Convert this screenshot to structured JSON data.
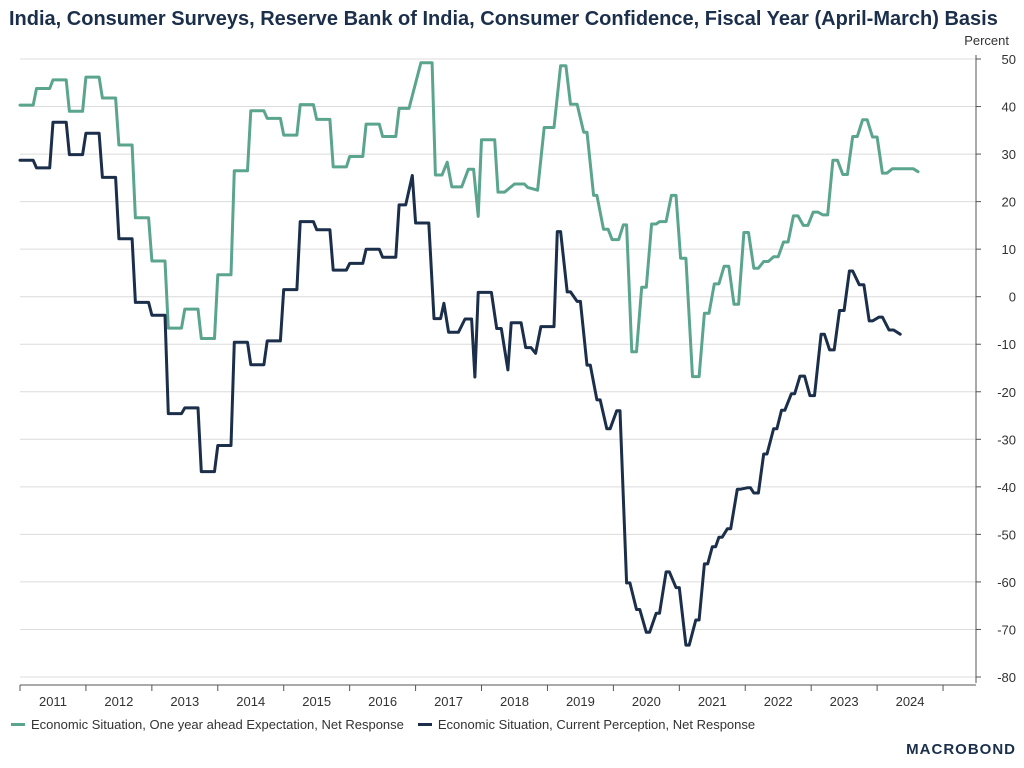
{
  "chart_data": {
    "type": "line",
    "title": "India, Consumer Surveys, Reserve Bank of India, Consumer Confidence, Fiscal Year (April-March) Basis",
    "y_unit": "Percent",
    "ylim": [
      -80,
      50
    ],
    "y_ticks": [
      50,
      40,
      30,
      20,
      10,
      0,
      -10,
      -20,
      -30,
      -40,
      -50,
      -60,
      -70,
      -80
    ],
    "x_range": [
      2010.5,
      2025.0
    ],
    "x_tick_labels": [
      "2011",
      "2012",
      "2013",
      "2014",
      "2015",
      "2016",
      "2017",
      "2018",
      "2019",
      "2020",
      "2021",
      "2022",
      "2023",
      "2024"
    ],
    "grid": "horizontal",
    "legend_position": "bottom-left",
    "series": [
      {
        "name": "Economic Situation, One year ahead Expectation, Net Response",
        "color": "#5ba58e",
        "points": [
          [
            2010.5,
            40.3
          ],
          [
            2010.7,
            40.3
          ],
          [
            2010.75,
            43.8
          ],
          [
            2010.95,
            43.8
          ],
          [
            2011.0,
            45.6
          ],
          [
            2011.2,
            45.6
          ],
          [
            2011.25,
            39.0
          ],
          [
            2011.45,
            39.0
          ],
          [
            2011.5,
            46.2
          ],
          [
            2011.7,
            46.2
          ],
          [
            2011.75,
            41.8
          ],
          [
            2011.95,
            41.8
          ],
          [
            2012.0,
            31.9
          ],
          [
            2012.2,
            31.9
          ],
          [
            2012.25,
            16.6
          ],
          [
            2012.45,
            16.6
          ],
          [
            2012.5,
            7.5
          ],
          [
            2012.7,
            7.5
          ],
          [
            2012.75,
            -6.6
          ],
          [
            2012.95,
            -6.6
          ],
          [
            2013.0,
            -2.6
          ],
          [
            2013.2,
            -2.6
          ],
          [
            2013.25,
            -8.8
          ],
          [
            2013.45,
            -8.8
          ],
          [
            2013.5,
            4.6
          ],
          [
            2013.7,
            4.6
          ],
          [
            2013.75,
            26.5
          ],
          [
            2013.95,
            26.5
          ],
          [
            2014.0,
            39.1
          ],
          [
            2014.2,
            39.1
          ],
          [
            2014.25,
            37.5
          ],
          [
            2014.45,
            37.5
          ],
          [
            2014.5,
            34.0
          ],
          [
            2014.7,
            34.0
          ],
          [
            2014.75,
            40.4
          ],
          [
            2014.95,
            40.4
          ],
          [
            2015.0,
            37.3
          ],
          [
            2015.2,
            37.3
          ],
          [
            2015.25,
            27.3
          ],
          [
            2015.45,
            27.3
          ],
          [
            2015.5,
            29.5
          ],
          [
            2015.7,
            29.5
          ],
          [
            2015.75,
            36.3
          ],
          [
            2015.95,
            36.3
          ],
          [
            2016.0,
            33.7
          ],
          [
            2016.2,
            33.7
          ],
          [
            2016.25,
            39.6
          ],
          [
            2016.4,
            39.6
          ],
          [
            2016.58,
            49.2
          ],
          [
            2016.75,
            49.2
          ],
          [
            2016.8,
            25.6
          ],
          [
            2016.9,
            25.6
          ],
          [
            2016.98,
            28.3
          ],
          [
            2017.05,
            23.1
          ],
          [
            2017.2,
            23.1
          ],
          [
            2017.3,
            26.8
          ],
          [
            2017.38,
            26.8
          ],
          [
            2017.45,
            16.9
          ],
          [
            2017.5,
            33.0
          ],
          [
            2017.7,
            33.0
          ],
          [
            2017.75,
            22.0
          ],
          [
            2017.85,
            22.0
          ],
          [
            2018.0,
            23.7
          ],
          [
            2018.15,
            23.7
          ],
          [
            2018.2,
            23.0
          ],
          [
            2018.35,
            22.4
          ],
          [
            2018.45,
            35.6
          ],
          [
            2018.6,
            35.6
          ],
          [
            2018.7,
            48.6
          ],
          [
            2018.78,
            48.6
          ],
          [
            2018.85,
            40.5
          ],
          [
            2018.95,
            40.5
          ],
          [
            2019.05,
            34.6
          ],
          [
            2019.1,
            34.6
          ],
          [
            2019.2,
            21.3
          ],
          [
            2019.25,
            21.3
          ],
          [
            2019.35,
            14.2
          ],
          [
            2019.42,
            14.2
          ],
          [
            2019.48,
            12.0
          ],
          [
            2019.58,
            12.0
          ],
          [
            2019.65,
            15.1
          ],
          [
            2019.7,
            15.1
          ],
          [
            2019.78,
            -11.6
          ],
          [
            2019.85,
            -11.6
          ],
          [
            2019.93,
            2.0
          ],
          [
            2020.0,
            2.0
          ],
          [
            2020.08,
            15.3
          ],
          [
            2020.15,
            15.3
          ],
          [
            2020.2,
            15.8
          ],
          [
            2020.3,
            15.8
          ],
          [
            2020.38,
            21.3
          ],
          [
            2020.45,
            21.3
          ],
          [
            2020.52,
            8.1
          ],
          [
            2020.6,
            8.1
          ],
          [
            2020.7,
            -16.8
          ],
          [
            2020.8,
            -16.8
          ],
          [
            2020.88,
            -3.5
          ],
          [
            2020.95,
            -3.5
          ],
          [
            2021.03,
            2.7
          ],
          [
            2021.1,
            2.7
          ],
          [
            2021.18,
            6.4
          ],
          [
            2021.25,
            6.4
          ],
          [
            2021.33,
            -1.6
          ],
          [
            2021.4,
            -1.6
          ],
          [
            2021.48,
            13.5
          ],
          [
            2021.55,
            13.5
          ],
          [
            2021.63,
            6.0
          ],
          [
            2021.7,
            6.0
          ],
          [
            2021.78,
            7.4
          ],
          [
            2021.85,
            7.4
          ],
          [
            2021.93,
            8.4
          ],
          [
            2022.0,
            8.4
          ],
          [
            2022.08,
            11.5
          ],
          [
            2022.15,
            11.5
          ],
          [
            2022.23,
            17.0
          ],
          [
            2022.3,
            17.0
          ],
          [
            2022.38,
            15.0
          ],
          [
            2022.45,
            15.0
          ],
          [
            2022.53,
            17.8
          ],
          [
            2022.6,
            17.8
          ],
          [
            2022.68,
            17.2
          ],
          [
            2022.75,
            17.2
          ],
          [
            2022.83,
            28.7
          ],
          [
            2022.9,
            28.7
          ],
          [
            2022.98,
            25.7
          ],
          [
            2023.05,
            25.7
          ],
          [
            2023.13,
            33.7
          ],
          [
            2023.2,
            33.7
          ],
          [
            2023.28,
            37.2
          ],
          [
            2023.35,
            37.2
          ],
          [
            2023.43,
            33.6
          ],
          [
            2023.5,
            33.6
          ],
          [
            2023.58,
            26.0
          ],
          [
            2023.65,
            26.0
          ],
          [
            2023.73,
            26.9
          ],
          [
            2023.8,
            26.9
          ],
          [
            2023.98,
            26.9
          ],
          [
            2024.05,
            26.9
          ],
          [
            2024.12,
            26.3
          ]
        ]
      },
      {
        "name": "Economic Situation, Current Perception, Net Response",
        "color": "#1b2f4b",
        "points": [
          [
            2010.5,
            28.7
          ],
          [
            2010.7,
            28.7
          ],
          [
            2010.75,
            27.1
          ],
          [
            2010.95,
            27.1
          ],
          [
            2011.0,
            36.7
          ],
          [
            2011.2,
            36.7
          ],
          [
            2011.25,
            29.9
          ],
          [
            2011.45,
            29.9
          ],
          [
            2011.5,
            34.4
          ],
          [
            2011.7,
            34.4
          ],
          [
            2011.75,
            25.1
          ],
          [
            2011.95,
            25.1
          ],
          [
            2012.0,
            12.2
          ],
          [
            2012.2,
            12.2
          ],
          [
            2012.25,
            -1.2
          ],
          [
            2012.45,
            -1.2
          ],
          [
            2012.5,
            -3.9
          ],
          [
            2012.7,
            -3.9
          ],
          [
            2012.75,
            -24.6
          ],
          [
            2012.95,
            -24.6
          ],
          [
            2013.0,
            -23.4
          ],
          [
            2013.2,
            -23.4
          ],
          [
            2013.25,
            -36.8
          ],
          [
            2013.45,
            -36.8
          ],
          [
            2013.5,
            -31.3
          ],
          [
            2013.7,
            -31.3
          ],
          [
            2013.75,
            -9.6
          ],
          [
            2013.95,
            -9.6
          ],
          [
            2014.0,
            -14.3
          ],
          [
            2014.2,
            -14.3
          ],
          [
            2014.25,
            -9.3
          ],
          [
            2014.45,
            -9.3
          ],
          [
            2014.5,
            1.5
          ],
          [
            2014.7,
            1.5
          ],
          [
            2014.75,
            15.8
          ],
          [
            2014.95,
            15.8
          ],
          [
            2015.0,
            14.1
          ],
          [
            2015.2,
            14.1
          ],
          [
            2015.25,
            5.6
          ],
          [
            2015.45,
            5.6
          ],
          [
            2015.5,
            7.0
          ],
          [
            2015.7,
            7.0
          ],
          [
            2015.75,
            10.0
          ],
          [
            2015.95,
            10.0
          ],
          [
            2016.0,
            8.3
          ],
          [
            2016.2,
            8.3
          ],
          [
            2016.25,
            19.3
          ],
          [
            2016.35,
            19.3
          ],
          [
            2016.45,
            25.5
          ],
          [
            2016.5,
            15.5
          ],
          [
            2016.7,
            15.5
          ],
          [
            2016.78,
            -4.6
          ],
          [
            2016.88,
            -4.6
          ],
          [
            2016.93,
            -1.4
          ],
          [
            2017.0,
            -7.5
          ],
          [
            2017.15,
            -7.5
          ],
          [
            2017.25,
            -4.7
          ],
          [
            2017.35,
            -4.7
          ],
          [
            2017.4,
            -16.9
          ],
          [
            2017.45,
            0.9
          ],
          [
            2017.65,
            0.9
          ],
          [
            2017.73,
            -6.7
          ],
          [
            2017.8,
            -6.7
          ],
          [
            2017.9,
            -15.4
          ],
          [
            2017.95,
            -5.5
          ],
          [
            2018.1,
            -5.5
          ],
          [
            2018.17,
            -10.7
          ],
          [
            2018.25,
            -10.7
          ],
          [
            2018.32,
            -11.9
          ],
          [
            2018.4,
            -6.3
          ],
          [
            2018.6,
            -6.3
          ],
          [
            2018.65,
            13.7
          ],
          [
            2018.7,
            13.7
          ],
          [
            2018.8,
            1.0
          ],
          [
            2018.85,
            1.0
          ],
          [
            2018.95,
            -1.0
          ],
          [
            2019.0,
            -1.0
          ],
          [
            2019.1,
            -14.4
          ],
          [
            2019.15,
            -14.4
          ],
          [
            2019.25,
            -21.7
          ],
          [
            2019.3,
            -21.7
          ],
          [
            2019.4,
            -27.8
          ],
          [
            2019.45,
            -27.8
          ],
          [
            2019.55,
            -24.0
          ],
          [
            2019.6,
            -24.0
          ],
          [
            2019.7,
            -60.2
          ],
          [
            2019.75,
            -60.2
          ],
          [
            2019.85,
            -65.8
          ],
          [
            2019.9,
            -65.8
          ],
          [
            2020.0,
            -70.6
          ],
          [
            2020.05,
            -70.6
          ],
          [
            2020.15,
            -66.6
          ],
          [
            2020.2,
            -66.6
          ],
          [
            2020.3,
            -57.9
          ],
          [
            2020.35,
            -57.9
          ],
          [
            2020.45,
            -61.2
          ],
          [
            2020.5,
            -61.2
          ],
          [
            2020.6,
            -73.3
          ],
          [
            2020.65,
            -73.3
          ],
          [
            2020.75,
            -68.0
          ],
          [
            2020.8,
            -68.0
          ],
          [
            2020.88,
            -56.2
          ],
          [
            2020.93,
            -56.2
          ],
          [
            2021.0,
            -52.6
          ],
          [
            2021.05,
            -52.6
          ],
          [
            2021.1,
            -50.6
          ],
          [
            2021.15,
            -50.6
          ],
          [
            2021.23,
            -48.8
          ],
          [
            2021.28,
            -48.8
          ],
          [
            2021.38,
            -40.5
          ],
          [
            2021.43,
            -40.5
          ],
          [
            2021.53,
            -40.2
          ],
          [
            2021.58,
            -40.2
          ],
          [
            2021.63,
            -41.3
          ],
          [
            2021.7,
            -41.3
          ],
          [
            2021.78,
            -33.1
          ],
          [
            2021.83,
            -33.1
          ],
          [
            2021.93,
            -27.8
          ],
          [
            2021.98,
            -27.8
          ],
          [
            2022.05,
            -23.9
          ],
          [
            2022.1,
            -23.9
          ],
          [
            2022.2,
            -20.4
          ],
          [
            2022.25,
            -20.4
          ],
          [
            2022.33,
            -16.7
          ],
          [
            2022.4,
            -16.7
          ],
          [
            2022.48,
            -20.8
          ],
          [
            2022.55,
            -20.8
          ],
          [
            2022.65,
            -7.9
          ],
          [
            2022.7,
            -7.9
          ],
          [
            2022.78,
            -11.2
          ],
          [
            2022.85,
            -11.2
          ],
          [
            2022.93,
            -2.9
          ],
          [
            2023.0,
            -2.9
          ],
          [
            2023.08,
            5.4
          ],
          [
            2023.13,
            5.4
          ],
          [
            2023.23,
            2.5
          ],
          [
            2023.3,
            2.5
          ],
          [
            2023.38,
            -5.1
          ],
          [
            2023.43,
            -5.1
          ],
          [
            2023.53,
            -4.3
          ],
          [
            2023.58,
            -4.3
          ],
          [
            2023.68,
            -7.0
          ],
          [
            2023.75,
            -7.0
          ],
          [
            2023.85,
            -7.9
          ]
        ]
      }
    ]
  },
  "legend": {
    "series_1": "Economic Situation, One year ahead Expectation, Net Response",
    "series_2": "Economic Situation, Current Perception, Net Response"
  },
  "brand": "MACROBOND"
}
